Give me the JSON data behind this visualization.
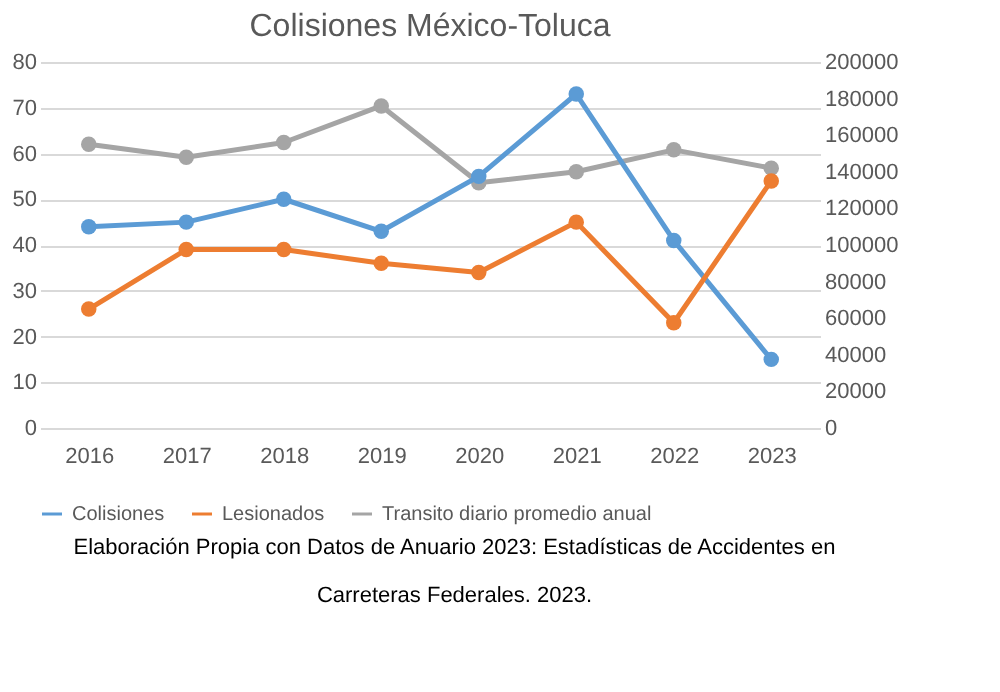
{
  "chart_data": {
    "type": "line",
    "title": "Colisiones México-Toluca",
    "categories": [
      "2016",
      "2017",
      "2018",
      "2019",
      "2020",
      "2021",
      "2022",
      "2023"
    ],
    "series": [
      {
        "name": "Colisiones",
        "color": "#5b9bd5",
        "values": [
          44,
          45,
          50,
          43,
          55,
          73,
          41,
          15
        ]
      },
      {
        "name": "Lesionados",
        "color": "#ed7d31",
        "values": [
          26,
          39,
          39,
          36,
          34,
          45,
          23,
          54
        ]
      },
      {
        "name": "Transito diario promedio anual",
        "color": "#a5a5a5",
        "axis": "y2",
        "values": [
          155000,
          148000,
          156000,
          176000,
          134000,
          140000,
          152000,
          142000
        ]
      }
    ],
    "ylim": [
      0,
      80
    ],
    "yticks": [
      0,
      10,
      20,
      30,
      40,
      50,
      60,
      70,
      80
    ],
    "y2lim": [
      0,
      200000
    ],
    "y2ticks": [
      0,
      20000,
      40000,
      60000,
      80000,
      100000,
      120000,
      140000,
      160000,
      180000,
      200000
    ],
    "grid": "y",
    "legend": "bottom",
    "marker": "circle",
    "annotations": [
      "Elaboración Propia con Datos de Anuario 2023: Estadísticas de Accidentes en Carreteras Federales. 2023."
    ]
  }
}
